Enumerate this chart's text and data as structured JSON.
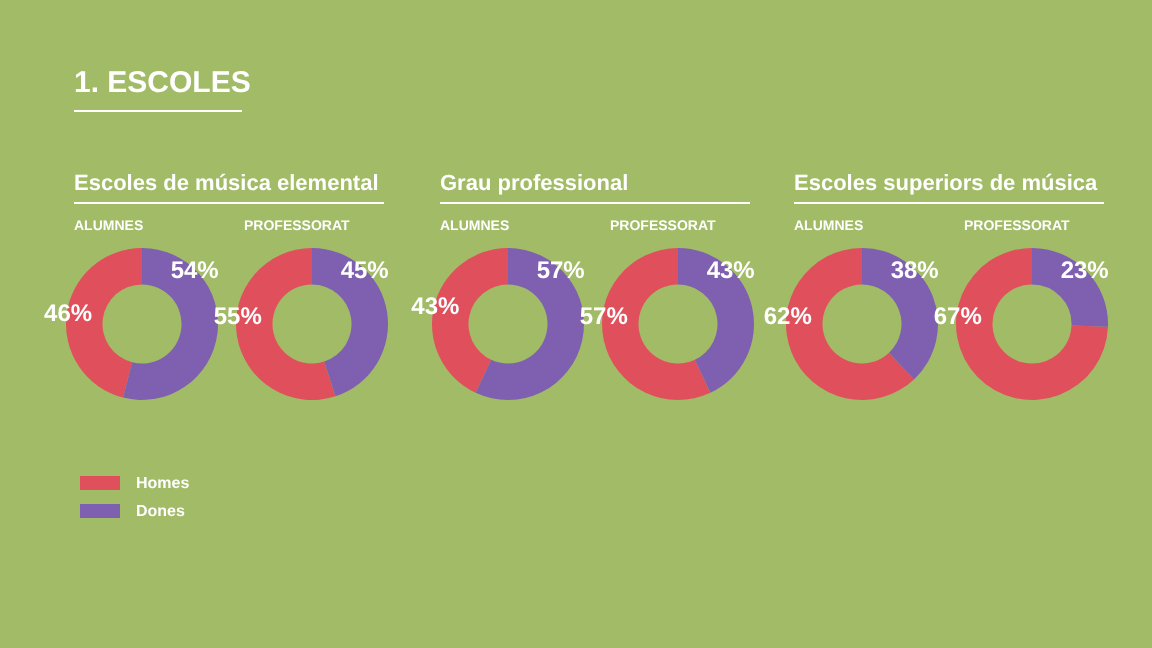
{
  "chart_data": [
    {
      "type": "other",
      "title": "1. ESCOLES"
    },
    {
      "type": "donut",
      "title": "Escoles de música elemental",
      "subtitle": "ALUMNES",
      "categories": [
        "Homes",
        "Dones"
      ],
      "values": [
        46,
        54
      ],
      "colors": [
        "#e0505c",
        "#7f5fb0"
      ],
      "value_labels": [
        "46%",
        "54%"
      ],
      "legend": "bottom left"
    },
    {
      "type": "donut",
      "subtitle": "PROFESSORAT",
      "categories": [
        null,
        null
      ],
      "values": [
        55,
        45
      ],
      "colors": [
        "#e0505c",
        "#7f5fb0"
      ],
      "value_labels": [
        "55%",
        "45%"
      ]
    },
    {
      "type": "donut",
      "title": "Grau professional",
      "subtitle": "ALUMNES",
      "categories": [
        null,
        null
      ],
      "values": [
        43,
        57
      ],
      "colors": [
        "#e0505c",
        "#7f5fb0"
      ],
      "value_labels": [
        "43%",
        "57%"
      ]
    },
    {
      "type": "donut",
      "subtitle": "PROFESSORAT",
      "categories": [
        null,
        null
      ],
      "values": [
        57,
        43
      ],
      "colors": [
        "#e0505c",
        "#7f5fb0"
      ],
      "value_labels": [
        "57%",
        "43%"
      ]
    },
    {
      "type": "donut",
      "title": "Escoles superiors de música",
      "subtitle": "ALUMNES",
      "categories": [
        null,
        null
      ],
      "values": [
        62,
        38
      ],
      "colors": [
        "#e0505c",
        "#7f5fb0"
      ],
      "value_labels": [
        "62%",
        "38%"
      ]
    },
    {
      "type": "donut",
      "subtitle": "PROFESSORAT",
      "categories": [
        null,
        null
      ],
      "values": [
        67,
        23
      ],
      "colors": [
        "#e0505c",
        "#7f5fb0"
      ],
      "value_labels": [
        "67%",
        "23%"
      ]
    }
  ]
}
